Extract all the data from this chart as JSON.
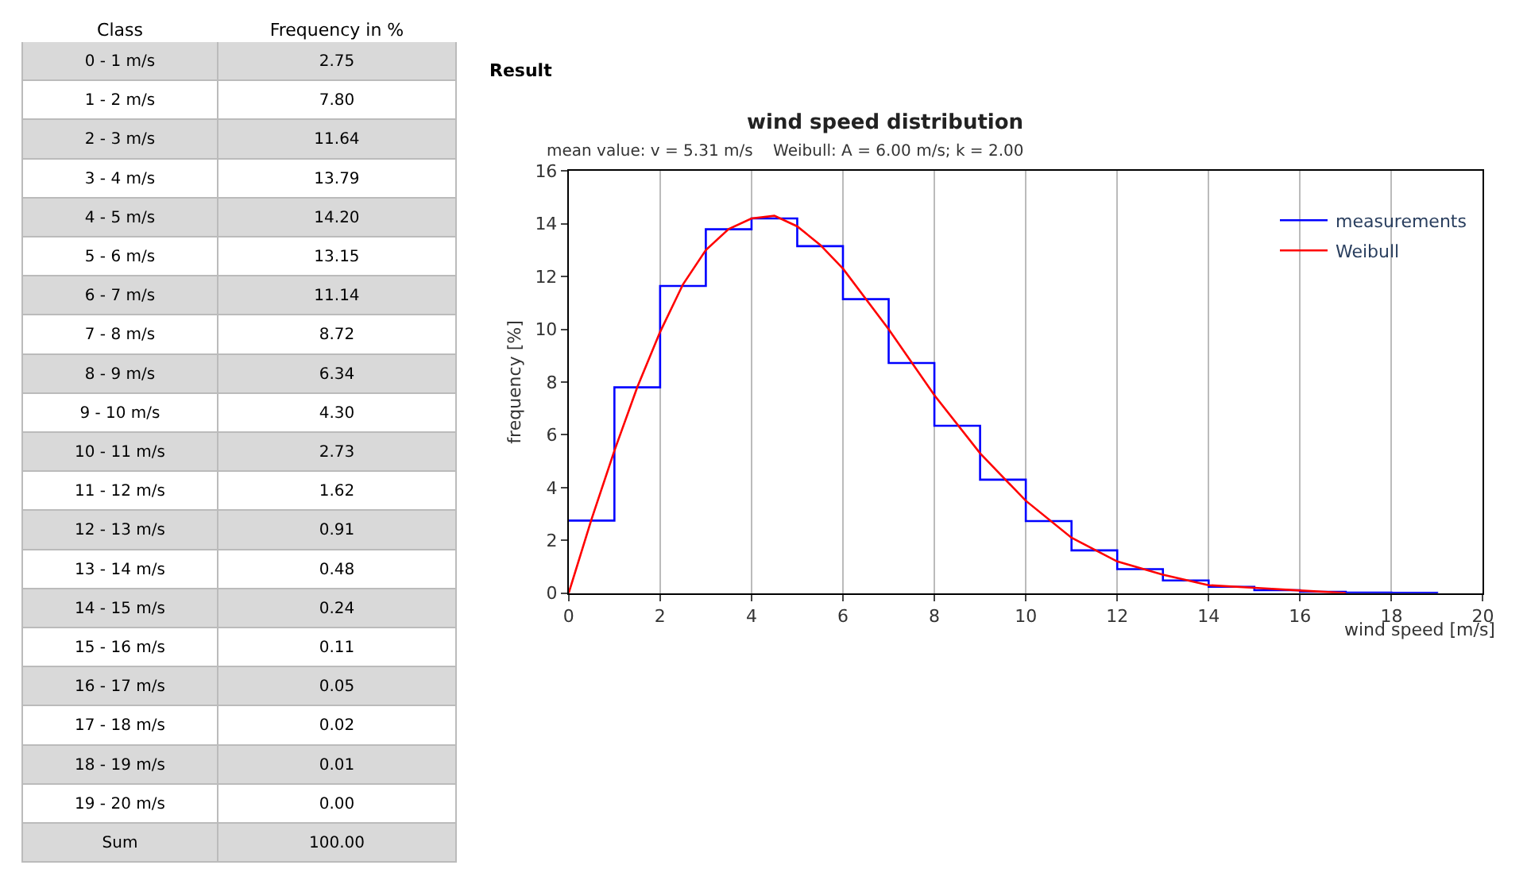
{
  "chart_data": [
    {
      "type": "other",
      "xlabel": "Class",
      "ylabel": "Frequency in %",
      "categories": [
        "0 - 1 m/s",
        "1 - 2 m/s",
        "2 - 3 m/s",
        "3 - 4 m/s",
        "4 - 5 m/s",
        "5 - 6 m/s",
        "6 - 7 m/s",
        "7 - 8 m/s",
        "8 - 9 m/s",
        "9 - 10 m/s",
        "10 - 11 m/s",
        "11 - 12 m/s",
        "12 - 13 m/s",
        "13 - 14 m/s",
        "14 - 15 m/s",
        "15 - 16 m/s",
        "16 - 17 m/s",
        "17 - 18 m/s",
        "18 - 19 m/s",
        "19 - 20 m/s"
      ],
      "value_labels": [
        "2.75",
        "7.80",
        "11.64",
        "13.79",
        "14.20",
        "13.15",
        "11.14",
        "8.72",
        "6.34",
        "4.30",
        "2.73",
        "1.62",
        "0.91",
        "0.48",
        "0.24",
        "0.11",
        "0.05",
        "0.02",
        "0.01",
        "0.00"
      ],
      "annotations": [
        "Sum",
        "100.00"
      ]
    },
    {
      "type": "step",
      "title": "wind speed distribution",
      "subtitle": "mean value: v = 5.31 m/s    Weibull: A = 6.00 m/s; k = 2.00",
      "xlabel": "wind speed [m/s]",
      "ylabel": "frequency [%]",
      "x": [
        0,
        1,
        2,
        3,
        4,
        5,
        6,
        7,
        8,
        9,
        10,
        11,
        12,
        13,
        14,
        15,
        16,
        17,
        18,
        19
      ],
      "series": [
        {
          "name": "measurements",
          "color": "#0000ff",
          "values": [
            2.75,
            7.8,
            11.64,
            13.79,
            14.2,
            13.15,
            11.14,
            8.72,
            6.34,
            4.3,
            2.73,
            1.62,
            0.91,
            0.48,
            0.24,
            0.11,
            0.05,
            0.02,
            0.01,
            0.0
          ]
        },
        {
          "name": "Weibull",
          "type": "line",
          "color": "#ff0000",
          "x": [
            0,
            0.5,
            1,
            1.5,
            2,
            2.5,
            3,
            3.5,
            4,
            4.5,
            5,
            5.5,
            6,
            7,
            8,
            9,
            10,
            11,
            12,
            13,
            14,
            15,
            16,
            17
          ],
          "values": [
            0,
            2.8,
            5.4,
            7.8,
            9.9,
            11.7,
            13.0,
            13.8,
            14.2,
            14.3,
            13.9,
            13.2,
            12.3,
            10.0,
            7.5,
            5.3,
            3.5,
            2.1,
            1.2,
            0.7,
            0.3,
            0.2,
            0.1,
            0.0
          ]
        }
      ],
      "xlim": [
        0,
        20
      ],
      "xticks": [
        0,
        2,
        4,
        6,
        8,
        10,
        12,
        14,
        16,
        18,
        20
      ],
      "ylim": [
        0,
        16
      ],
      "yticks": [
        0,
        2,
        4,
        6,
        8,
        10,
        12,
        14,
        16
      ],
      "grid": "x",
      "legend": "top right",
      "annotations": [
        "Result"
      ]
    }
  ]
}
